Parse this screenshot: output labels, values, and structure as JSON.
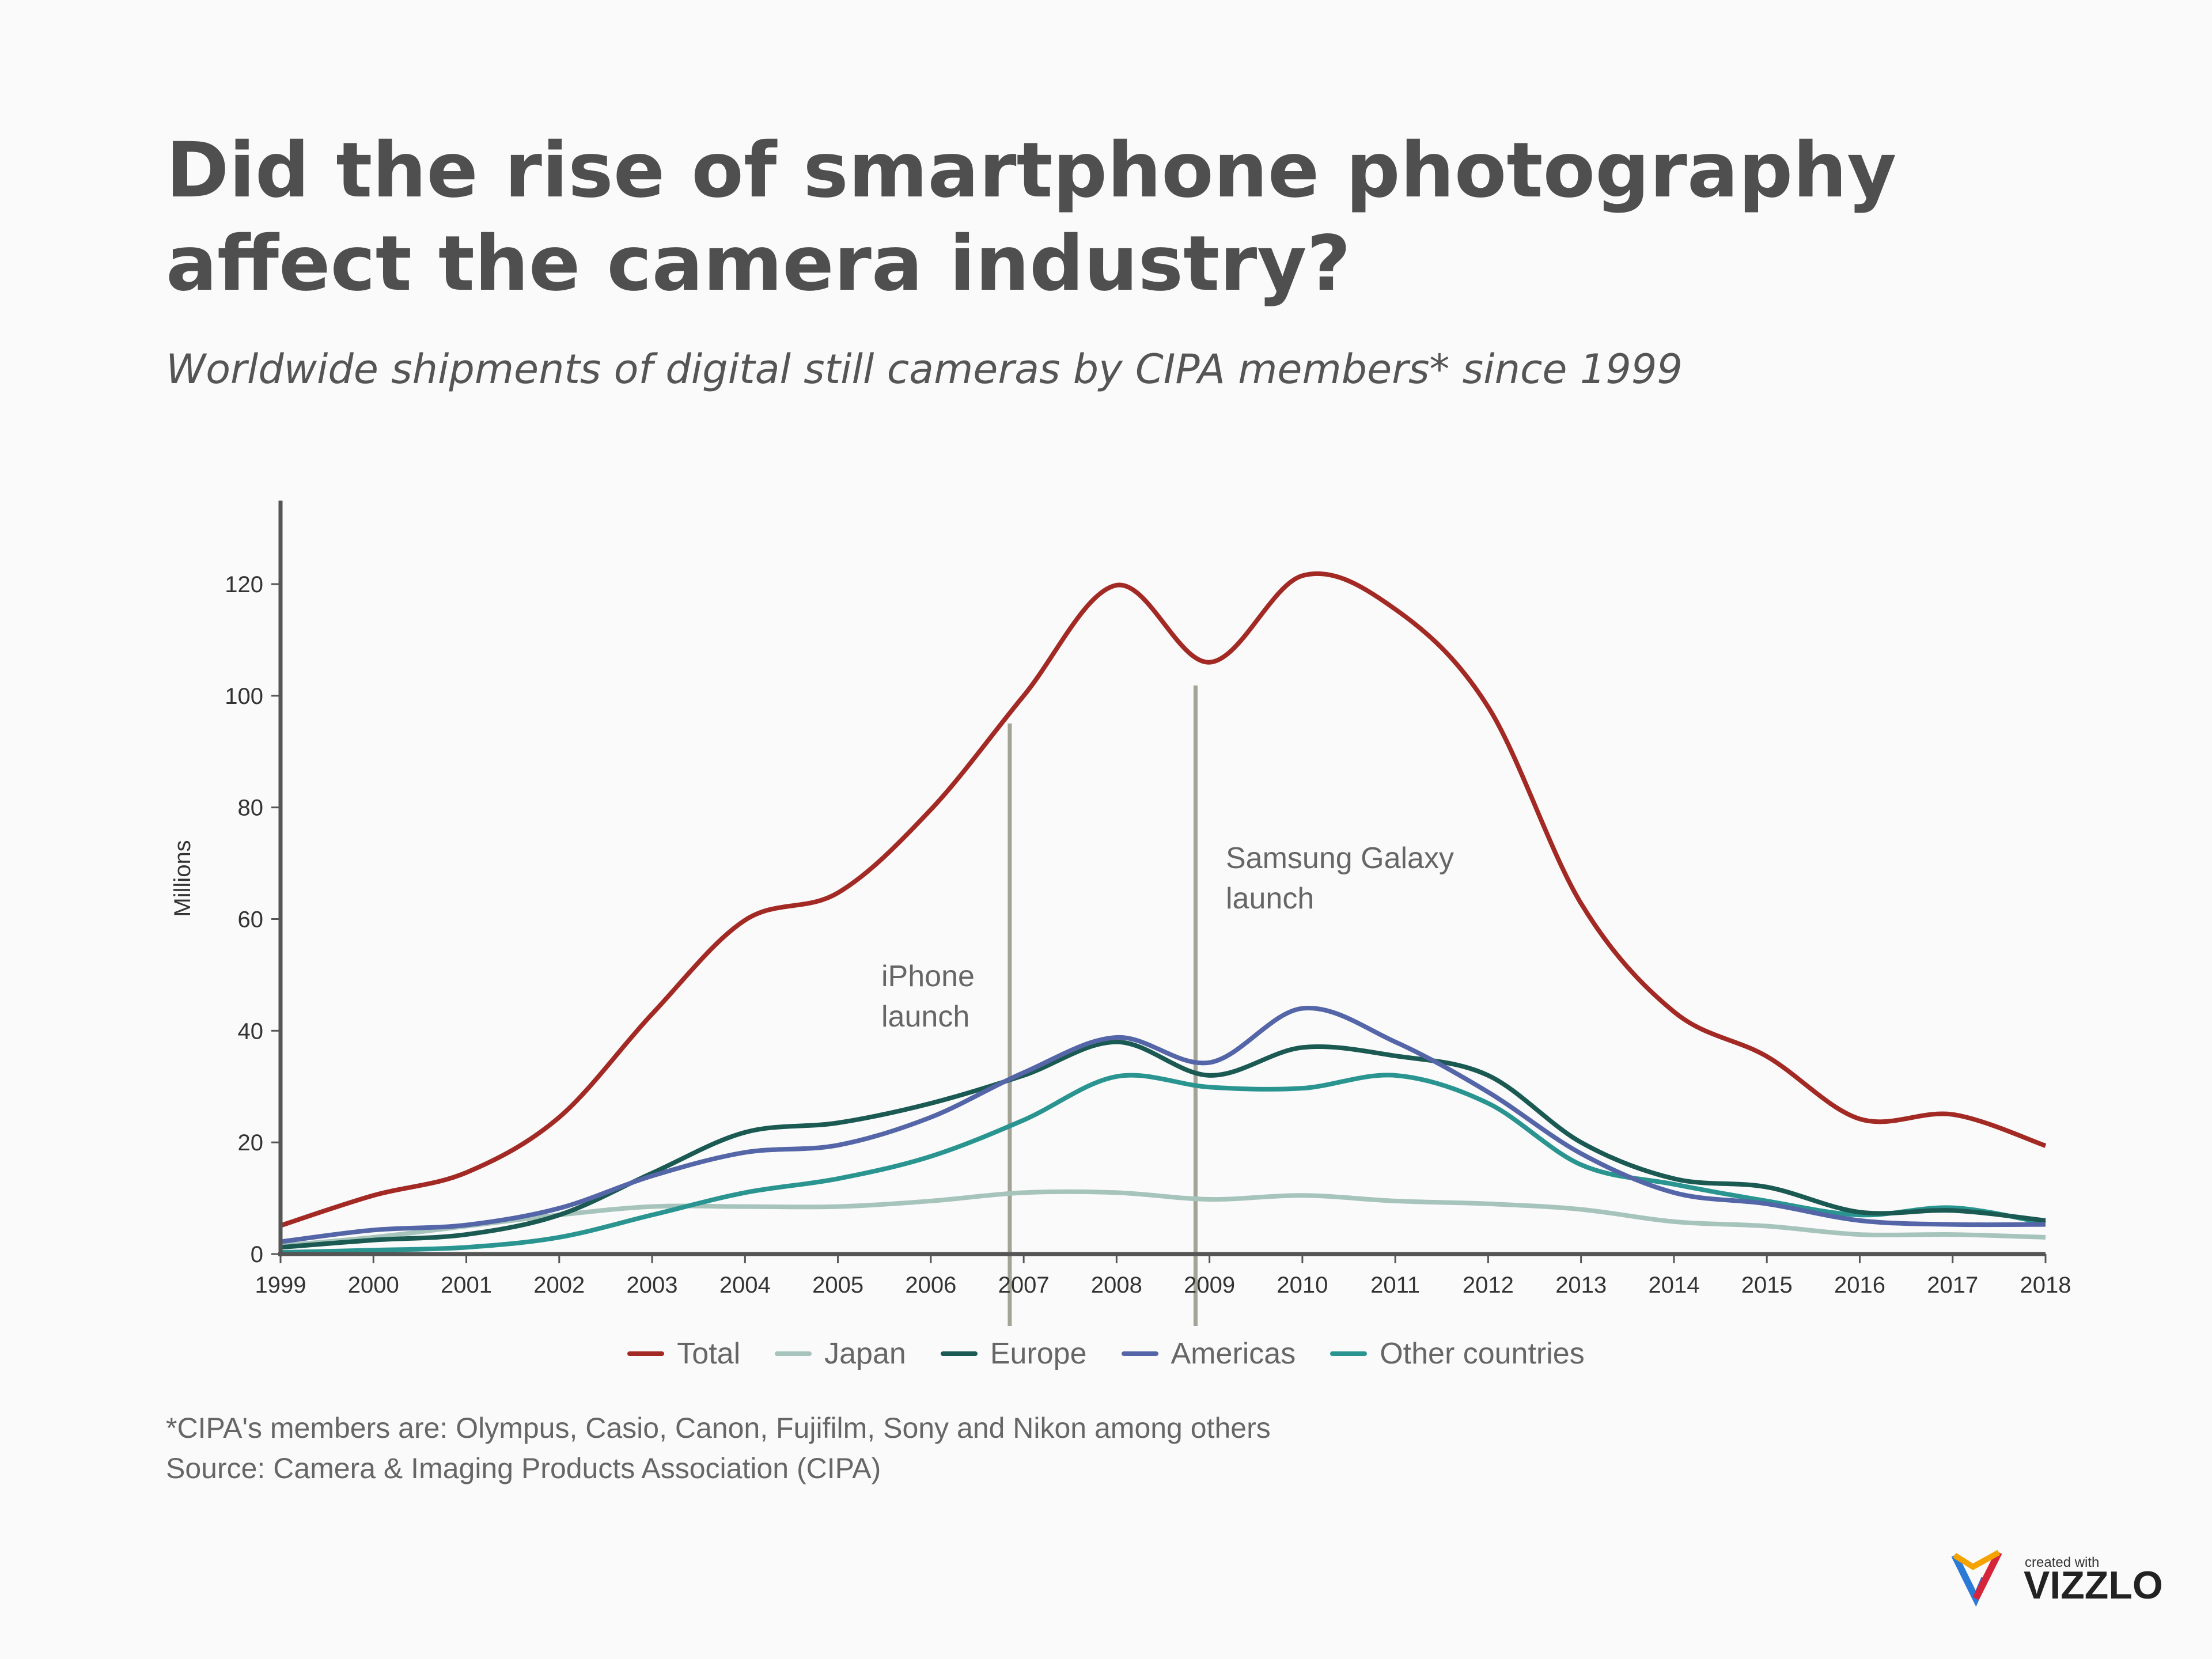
{
  "title": "Did the rise of smartphone photography affect the camera industry?",
  "subtitle": "Worldwide shipments of digital still cameras by CIPA members* since 1999",
  "footnote": "*CIPA's members are: Olympus, Casio, Canon, Fujifilm, Sony and Nikon among others",
  "source": "Source: Camera & Imaging Products Association (CIPA)",
  "logo": {
    "small_text": "created with",
    "brand": "VIZZLO"
  },
  "chart_data": {
    "type": "line",
    "ylabel": "Millions",
    "xlabel": "",
    "ylim": [
      0,
      135
    ],
    "yticks": [
      0,
      20,
      40,
      60,
      80,
      100,
      120
    ],
    "x": [
      "1999",
      "2000",
      "2001",
      "2002",
      "2003",
      "2004",
      "2005",
      "2006",
      "2007",
      "2008",
      "2009",
      "2010",
      "2011",
      "2012",
      "2013",
      "2014",
      "2015",
      "2016",
      "2017",
      "2018"
    ],
    "grid": false,
    "legend_position": "bottom",
    "series": [
      {
        "name": "Total",
        "color": "#a32a24",
        "values": [
          5.1,
          10.5,
          14.6,
          24.5,
          43,
          59.8,
          64.7,
          79.6,
          100,
          119.8,
          106,
          121.5,
          115.5,
          98,
          62.8,
          43.4,
          35.4,
          24.2,
          25,
          19.4
        ]
      },
      {
        "name": "Japan",
        "color": "#a6c4bb",
        "values": [
          1.5,
          3,
          5,
          7,
          8.5,
          8.5,
          8.5,
          9.5,
          11,
          11,
          9.8,
          10.5,
          9.5,
          9,
          8,
          5.8,
          5,
          3.5,
          3.5,
          3
        ]
      },
      {
        "name": "Europe",
        "color": "#1b5a52",
        "values": [
          1.2,
          2.5,
          3.5,
          7,
          14.5,
          21.8,
          23.5,
          27,
          32,
          38,
          32,
          37,
          35.5,
          32,
          20,
          13.5,
          12,
          7.5,
          7.8,
          6
        ]
      },
      {
        "name": "Americas",
        "color": "#5566a8",
        "values": [
          2.2,
          4.3,
          5.2,
          8.2,
          14,
          18.2,
          19.5,
          24.5,
          32.5,
          38.8,
          34.3,
          44,
          38,
          29,
          18,
          11,
          9,
          6,
          5.3,
          5.3
        ]
      },
      {
        "name": "Other countries",
        "color": "#2a9590",
        "values": [
          0.3,
          0.7,
          1.2,
          3,
          7,
          11,
          13.5,
          17.5,
          24,
          31.8,
          29.9,
          29.7,
          32,
          27,
          16,
          12.5,
          9.5,
          7,
          8.3,
          5.5
        ]
      }
    ],
    "annotations": [
      {
        "label_line1": "iPhone",
        "label_line2": "launch",
        "x": 2006.85
      },
      {
        "label_line1": "Samsung Galaxy",
        "label_line2": "launch",
        "x": 2008.85
      }
    ]
  }
}
